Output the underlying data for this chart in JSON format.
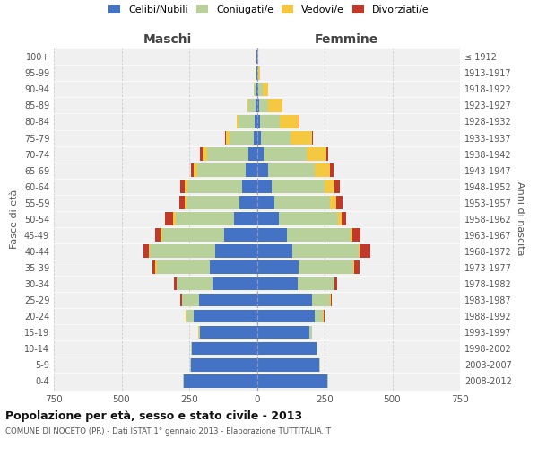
{
  "age_groups": [
    "0-4",
    "5-9",
    "10-14",
    "15-19",
    "20-24",
    "25-29",
    "30-34",
    "35-39",
    "40-44",
    "45-49",
    "50-54",
    "55-59",
    "60-64",
    "65-69",
    "70-74",
    "75-79",
    "80-84",
    "85-89",
    "90-94",
    "95-99",
    "100+"
  ],
  "birth_years": [
    "2008-2012",
    "2003-2007",
    "1998-2002",
    "1993-1997",
    "1988-1992",
    "1983-1987",
    "1978-1982",
    "1973-1977",
    "1968-1972",
    "1963-1967",
    "1958-1962",
    "1953-1957",
    "1948-1952",
    "1943-1947",
    "1938-1942",
    "1933-1937",
    "1928-1932",
    "1923-1927",
    "1918-1922",
    "1913-1917",
    "≤ 1912"
  ],
  "males": {
    "celibi": [
      270,
      245,
      240,
      210,
      235,
      215,
      165,
      175,
      155,
      120,
      85,
      65,
      55,
      40,
      30,
      12,
      8,
      5,
      3,
      2,
      2
    ],
    "coniugati": [
      2,
      2,
      2,
      5,
      25,
      60,
      130,
      195,
      240,
      230,
      215,
      195,
      200,
      180,
      155,
      90,
      60,
      25,
      8,
      2,
      1
    ],
    "vedovi": [
      0,
      0,
      0,
      1,
      2,
      3,
      3,
      5,
      5,
      5,
      8,
      8,
      12,
      15,
      15,
      12,
      8,
      5,
      2,
      0,
      0
    ],
    "divorziati": [
      0,
      0,
      0,
      1,
      2,
      5,
      8,
      12,
      18,
      22,
      30,
      20,
      15,
      10,
      10,
      2,
      0,
      0,
      0,
      0,
      0
    ]
  },
  "females": {
    "nubili": [
      260,
      230,
      220,
      195,
      215,
      205,
      150,
      155,
      130,
      110,
      80,
      65,
      55,
      40,
      25,
      15,
      10,
      8,
      5,
      2,
      2
    ],
    "coniugate": [
      3,
      3,
      3,
      8,
      30,
      65,
      135,
      200,
      245,
      235,
      220,
      205,
      195,
      175,
      160,
      110,
      75,
      35,
      15,
      3,
      2
    ],
    "vedove": [
      0,
      0,
      0,
      1,
      2,
      2,
      3,
      5,
      5,
      8,
      12,
      22,
      35,
      55,
      70,
      80,
      70,
      50,
      20,
      5,
      2
    ],
    "divorziate": [
      0,
      0,
      0,
      1,
      2,
      5,
      8,
      20,
      40,
      30,
      18,
      25,
      20,
      12,
      8,
      2,
      2,
      0,
      0,
      0,
      0
    ]
  },
  "colors": {
    "celibi": "#4472c4",
    "coniugati": "#b8d09a",
    "vedovi": "#f5c842",
    "divorziati": "#c0392b"
  },
  "xlim": 750,
  "title": "Popolazione per età, sesso e stato civile - 2013",
  "subtitle": "COMUNE DI NOCETO (PR) - Dati ISTAT 1° gennaio 2013 - Elaborazione TUTTITALIA.IT",
  "ylabel_left": "Fasce di età",
  "ylabel_right": "Anni di nascita",
  "xlabel_left": "Maschi",
  "xlabel_right": "Femmine",
  "legend_labels": [
    "Celibi/Nubili",
    "Coniugati/e",
    "Vedovi/e",
    "Divorziati/e"
  ]
}
